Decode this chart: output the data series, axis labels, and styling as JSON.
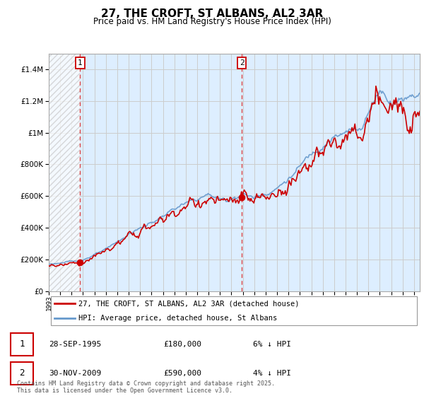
{
  "title": "27, THE CROFT, ST ALBANS, AL2 3AR",
  "subtitle": "Price paid vs. HM Land Registry's House Price Index (HPI)",
  "hpi_label": "HPI: Average price, detached house, St Albans",
  "price_label": "27, THE CROFT, ST ALBANS, AL2 3AR (detached house)",
  "sale1_date": "28-SEP-1995",
  "sale1_price": 180000,
  "sale1_note": "6% ↓ HPI",
  "sale2_date": "30-NOV-2009",
  "sale2_price": 590000,
  "sale2_note": "4% ↓ HPI",
  "sale1_year": 1995.75,
  "sale2_year": 2009.92,
  "ylim": [
    0,
    1500000
  ],
  "xlim_start": 1993,
  "xlim_end": 2025.5,
  "footer": "Contains HM Land Registry data © Crown copyright and database right 2025.\nThis data is licensed under the Open Government Licence v3.0.",
  "bg_color": "#ffffff",
  "plot_bg_color": "#ddeeff",
  "hatch_color": "#c8c8c8",
  "grid_color": "#cccccc",
  "hpi_color": "#6699cc",
  "price_color": "#cc0000",
  "dashed_line_color": "#dd4444",
  "yticks": [
    0,
    200000,
    400000,
    600000,
    800000,
    1000000,
    1200000,
    1400000
  ],
  "xtick_start": 1993,
  "xtick_end": 2026
}
